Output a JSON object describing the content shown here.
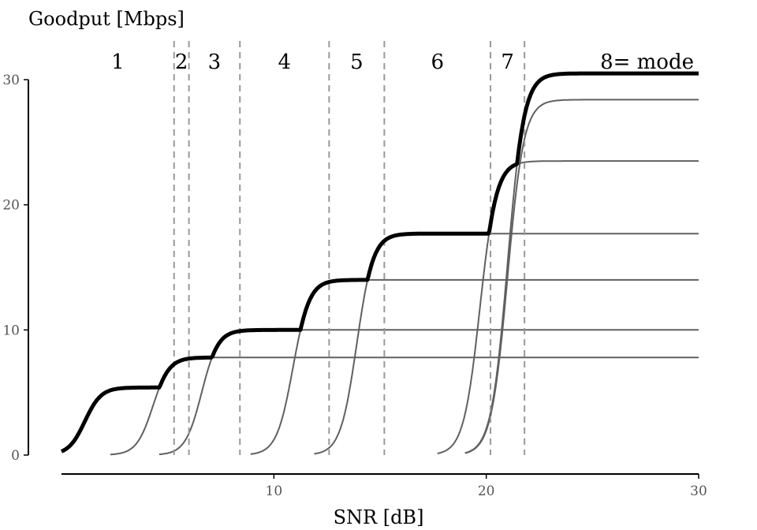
{
  "chart_data": {
    "type": "line",
    "xlabel": "SNR [dB]",
    "ylabel": "Goodput [Mbps]",
    "xlim": [
      0,
      30
    ],
    "ylim": [
      0,
      30
    ],
    "x_ticks": [
      {
        "value": 10,
        "label": "10"
      },
      {
        "value": 20,
        "label": "20"
      },
      {
        "value": 30,
        "label": "30"
      }
    ],
    "y_ticks": [
      {
        "value": 0,
        "label": "0"
      },
      {
        "value": 10,
        "label": "10"
      },
      {
        "value": 20,
        "label": "20"
      },
      {
        "value": 30,
        "label": "30"
      }
    ],
    "grid": false,
    "colors": {
      "envelope": "#000000",
      "mode_curve": "#606060",
      "threshold": "#999999",
      "axis": "#000000"
    },
    "modes": [
      {
        "label": "1",
        "goodput": 5.4,
        "midpoint": 1.1
      },
      {
        "label": "2",
        "goodput": 7.8,
        "midpoint": 4.3
      },
      {
        "label": "3",
        "goodput": 10.0,
        "midpoint": 6.6
      },
      {
        "label": "4",
        "goodput": 14.0,
        "midpoint": 10.9
      },
      {
        "label": "5",
        "goodput": 17.7,
        "midpoint": 13.9
      },
      {
        "label": "6",
        "goodput": 23.5,
        "midpoint": 19.7
      },
      {
        "label": "7",
        "goodput": 28.4,
        "midpoint": 21.0
      },
      {
        "label": "8= mode",
        "goodput": 30.5,
        "midpoint": 21.0
      }
    ],
    "thresholds": [
      5.3,
      6.0,
      8.4,
      12.6,
      15.2,
      20.2,
      21.8
    ]
  }
}
